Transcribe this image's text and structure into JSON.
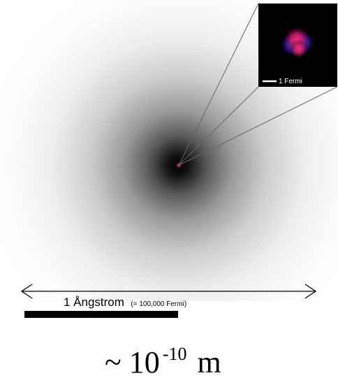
{
  "scale_label_main": "1 Ångstrom",
  "scale_label_note": "(= 100,000 Fermi)",
  "inset_scale_label": "1 Fermi",
  "size_label": {
    "prefix": "~ 10",
    "exponent": "-10",
    "unit": " m"
  },
  "colors": {
    "electron_cloud": "#000000",
    "background": "#ffffff",
    "inset_background": "#000000",
    "proton": "#ff2266",
    "neutron": "#4433ff",
    "scale_bar": "#000000"
  }
}
